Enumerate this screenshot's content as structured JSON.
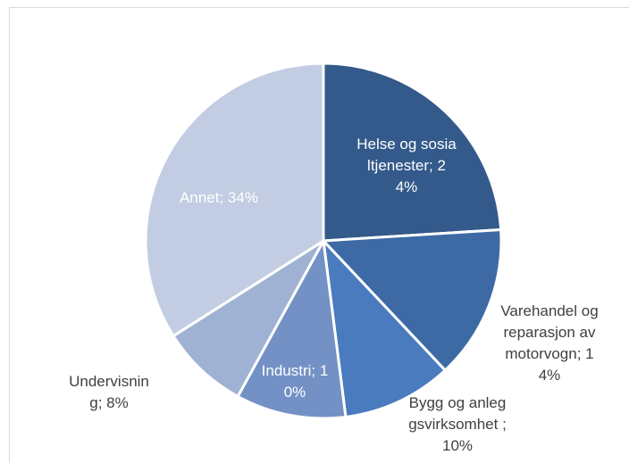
{
  "chart_data": {
    "type": "pie",
    "values": [
      24,
      14,
      10,
      10,
      8,
      34
    ],
    "value_labels": [
      "Helse og sosialtjenester; 24%",
      "Varehandel og reparasjon av motorvogn; 14%",
      "Bygg og anleggsvirksomhet ; 10%",
      "Industri; 10%",
      "Undervisning; 8%",
      "Annet; 34%"
    ],
    "colors": [
      "#335a8a",
      "#3d6aa5",
      "#4a7bbf",
      "#7391c5",
      "#9fb2d3",
      "#c2cde3"
    ]
  }
}
